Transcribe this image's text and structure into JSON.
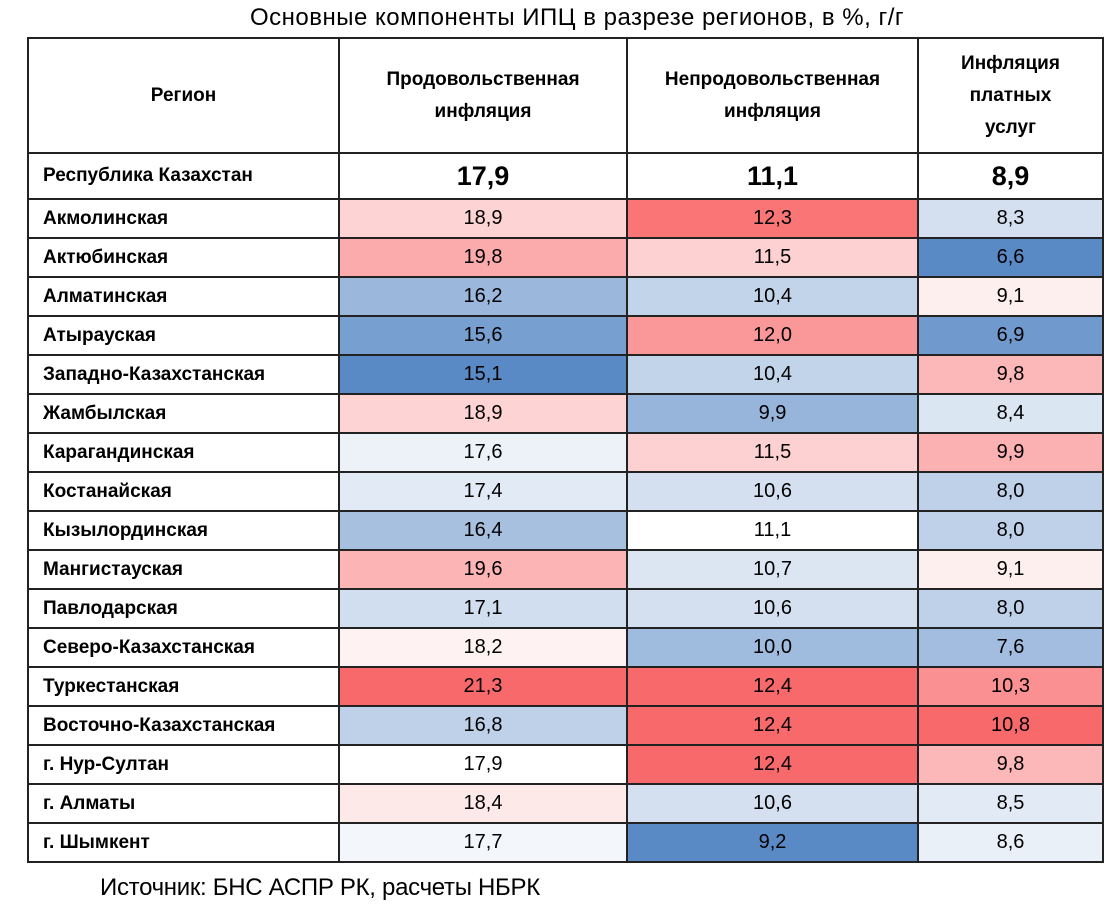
{
  "chart_data": {
    "type": "heatmap",
    "title": "Основные компоненты ИПЦ в разрезе регионов, в %, г/г",
    "columns": [
      "Регион",
      "Продовольственная инфляция",
      "Непродовольственная инфляция",
      "Инфляция платных услуг"
    ],
    "national": {
      "label": "Республика Казахстан",
      "values": [
        "17,9",
        "11,1",
        "8,9"
      ]
    },
    "rows": [
      {
        "region": "Акмолинская",
        "values": [
          "18,9",
          "12,3",
          "8,3"
        ]
      },
      {
        "region": "Актюбинская",
        "values": [
          "19,8",
          "11,5",
          "6,6"
        ]
      },
      {
        "region": "Алматинская",
        "values": [
          "16,2",
          "10,4",
          "9,1"
        ]
      },
      {
        "region": "Атырауская",
        "values": [
          "15,6",
          "12,0",
          "6,9"
        ]
      },
      {
        "region": "Западно-Казахстанская",
        "values": [
          "15,1",
          "10,4",
          "9,8"
        ]
      },
      {
        "region": "Жамбылская",
        "values": [
          "18,9",
          "9,9",
          "8,4"
        ]
      },
      {
        "region": "Карагандинская",
        "values": [
          "17,6",
          "11,5",
          "9,9"
        ]
      },
      {
        "region": "Костанайская",
        "values": [
          "17,4",
          "10,6",
          "8,0"
        ]
      },
      {
        "region": "Кызылординская",
        "values": [
          "16,4",
          "11,1",
          "8,0"
        ]
      },
      {
        "region": "Мангистауская",
        "values": [
          "19,6",
          "10,7",
          "9,1"
        ]
      },
      {
        "region": "Павлодарская",
        "values": [
          "17,1",
          "10,6",
          "8,0"
        ]
      },
      {
        "region": "Северо-Казахстанская",
        "values": [
          "18,2",
          "10,0",
          "7,6"
        ]
      },
      {
        "region": "Туркестанская",
        "values": [
          "21,3",
          "12,4",
          "10,3"
        ]
      },
      {
        "region": "Восточно-Казахстанская",
        "values": [
          "16,8",
          "12,4",
          "10,8"
        ]
      },
      {
        "region": "г. Нур-Султан",
        "values": [
          "17,9",
          "12,4",
          "9,8"
        ]
      },
      {
        "region": "г. Алматы",
        "values": [
          "18,4",
          "10,6",
          "8,5"
        ]
      },
      {
        "region": "г. Шымкент",
        "values": [
          "17,7",
          "9,2",
          "8,6"
        ]
      }
    ],
    "color_scale": {
      "low": "#5A8AC6",
      "mid": "#FFFFFF",
      "high": "#F8696B",
      "midpoint": "national value per column"
    }
  },
  "source": "Источник: БНС АСПР РК, расчеты НБРК"
}
